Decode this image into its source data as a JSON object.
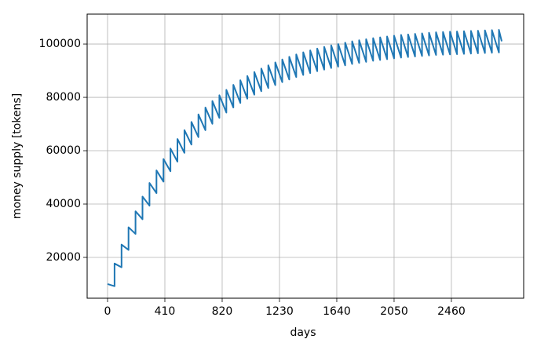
{
  "chart_data": {
    "type": "line",
    "xlabel": "days",
    "ylabel": "money supply [tokens]",
    "color": "#1f77b4",
    "grid": true,
    "xlim": [
      -146,
      2977
    ],
    "xticks": [
      0,
      410,
      820,
      1230,
      1640,
      2050,
      2460
    ],
    "ylim": [
      4700,
      111200
    ],
    "yticks": [
      20000,
      40000,
      60000,
      80000,
      100000
    ],
    "x": [
      0,
      50,
      50,
      100,
      100,
      150,
      150,
      200,
      200,
      250,
      250,
      300,
      300,
      350,
      350,
      400,
      400,
      450,
      450,
      500,
      500,
      550,
      550,
      600,
      600,
      650,
      650,
      700,
      700,
      750,
      750,
      800,
      800,
      850,
      850,
      900,
      900,
      950,
      950,
      1000,
      1000,
      1050,
      1050,
      1100,
      1100,
      1150,
      1150,
      1200,
      1200,
      1250,
      1250,
      1300,
      1300,
      1350,
      1350,
      1400,
      1400,
      1450,
      1450,
      1500,
      1500,
      1550,
      1550,
      1600,
      1600,
      1650,
      1650,
      1700,
      1700,
      1750,
      1750,
      1800,
      1800,
      1850,
      1850,
      1900,
      1900,
      1950,
      1950,
      2000,
      2000,
      2050,
      2050,
      2100,
      2100,
      2150,
      2150,
      2200,
      2200,
      2250,
      2250,
      2300,
      2300,
      2350,
      2350,
      2400,
      2400,
      2450,
      2450,
      2500,
      2500,
      2550,
      2550,
      2600,
      2600,
      2650,
      2650,
      2700,
      2700,
      2750,
      2750,
      2800,
      2800,
      2820
    ],
    "values": [
      10000,
      9200,
      17700,
      16300,
      24800,
      22800,
      31300,
      28800,
      37300,
      34300,
      42800,
      39400,
      47900,
      44100,
      52600,
      48400,
      56900,
      52300,
      60800,
      55900,
      64400,
      59200,
      67700,
      62300,
      70800,
      65100,
      73600,
      67700,
      76200,
      70100,
      78600,
      72300,
      80800,
      74300,
      82800,
      76200,
      84700,
      77900,
      86400,
      79500,
      88000,
      81000,
      89500,
      82300,
      90800,
      83500,
      92000,
      84600,
      93100,
      85700,
      94200,
      86700,
      95200,
      87600,
      96100,
      88400,
      96900,
      89100,
      97600,
      89800,
      98300,
      90400,
      98900,
      91000,
      99500,
      91500,
      100000,
      92000,
      100500,
      92500,
      101000,
      92900,
      101400,
      93300,
      101800,
      93700,
      102200,
      94000,
      102500,
      94300,
      102800,
      94600,
      103100,
      94900,
      103400,
      95100,
      103600,
      95300,
      103800,
      95500,
      104000,
      95700,
      104200,
      95900,
      104400,
      96000,
      104500,
      96100,
      104600,
      96200,
      104700,
      96300,
      104800,
      96400,
      104900,
      96500,
      105000,
      96600,
      105100,
      96700,
      105200,
      96800,
      105300,
      101000
    ]
  }
}
